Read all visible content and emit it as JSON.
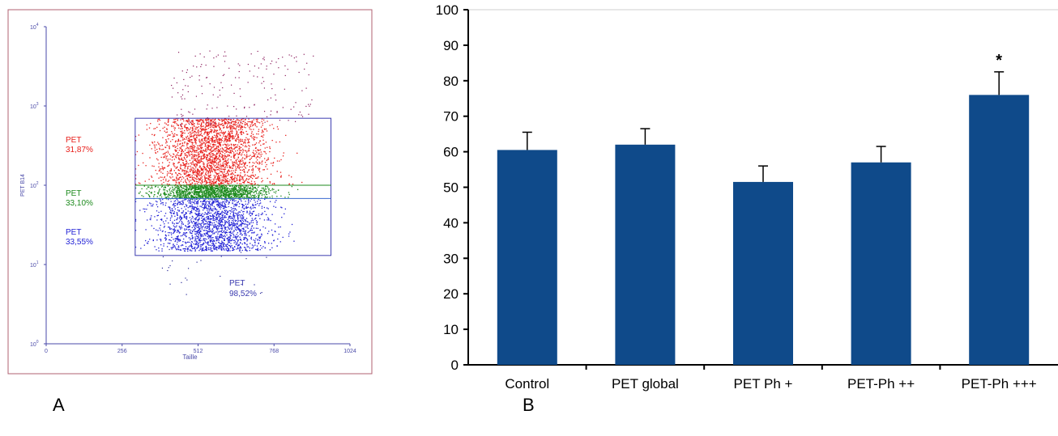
{
  "panels": {
    "a": "A",
    "b": "B"
  },
  "chart_data": [
    {
      "type": "scatter",
      "xlabel": "Taille",
      "ylabel": "PET B14",
      "x_ticks": [
        "0",
        "256",
        "512",
        "768",
        "1024"
      ],
      "xlim": [
        0,
        1024
      ],
      "y_scale": "log",
      "ylim": [
        1,
        10000
      ],
      "y_ticks": [
        {
          "base": "10",
          "exp": "0"
        },
        {
          "base": "10",
          "exp": "1"
        },
        {
          "base": "10",
          "exp": "2"
        },
        {
          "base": "10",
          "exp": "3"
        },
        {
          "base": "10",
          "exp": "4"
        }
      ],
      "gates": [
        {
          "name": "PET",
          "percent": "31,87%",
          "color": "#e8201c",
          "y_range": [
            100,
            700
          ]
        },
        {
          "name": "PET",
          "percent": "33,10%",
          "color": "#1d8a1d",
          "y_range": [
            68,
            100
          ]
        },
        {
          "name": "PET",
          "percent": "33,55%",
          "color": "#2323d6",
          "y_range": [
            13,
            68
          ]
        }
      ],
      "total_gate": {
        "name": "PET",
        "percent": "98,52%",
        "color": "#3b3bb0",
        "x_range": [
          300,
          960
        ],
        "y_range": [
          13,
          700
        ]
      },
      "frame_color": "#b06070",
      "axis_color": "#4a4aa8"
    },
    {
      "type": "bar",
      "categories": [
        "Control",
        "PET global",
        "PET Ph +",
        "PET-Ph ++",
        "PET-Ph +++"
      ],
      "values": [
        60.5,
        62,
        51.5,
        57,
        76
      ],
      "errors": [
        5,
        4.5,
        4.5,
        4.5,
        6.5
      ],
      "ylim": [
        0,
        100
      ],
      "y_ticks": [
        "0",
        "10",
        "20",
        "30",
        "40",
        "50",
        "60",
        "70",
        "80",
        "90",
        "100"
      ],
      "annotation": {
        "text": "*",
        "category": "PET-Ph +++"
      },
      "bar_color": "#0f4a8a",
      "grid": false
    }
  ]
}
